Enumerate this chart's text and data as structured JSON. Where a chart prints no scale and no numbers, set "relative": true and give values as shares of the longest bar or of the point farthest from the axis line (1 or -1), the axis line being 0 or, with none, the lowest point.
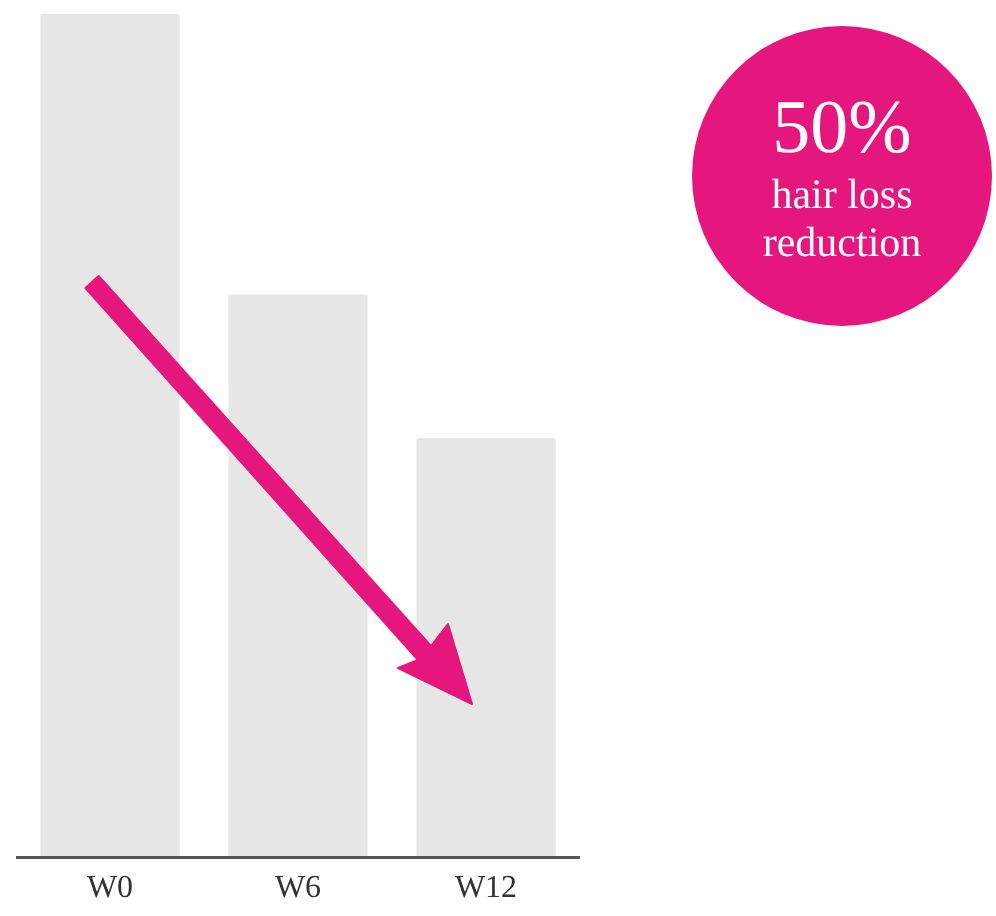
{
  "chart_data": {
    "type": "bar",
    "relative": true,
    "categories": [
      "W0",
      "W6",
      "W12"
    ],
    "values": [
      1,
      0.667,
      0.496
    ],
    "color": "#e6e6e6",
    "annotations": [
      "50%",
      "hair loss reduction"
    ]
  }
}
